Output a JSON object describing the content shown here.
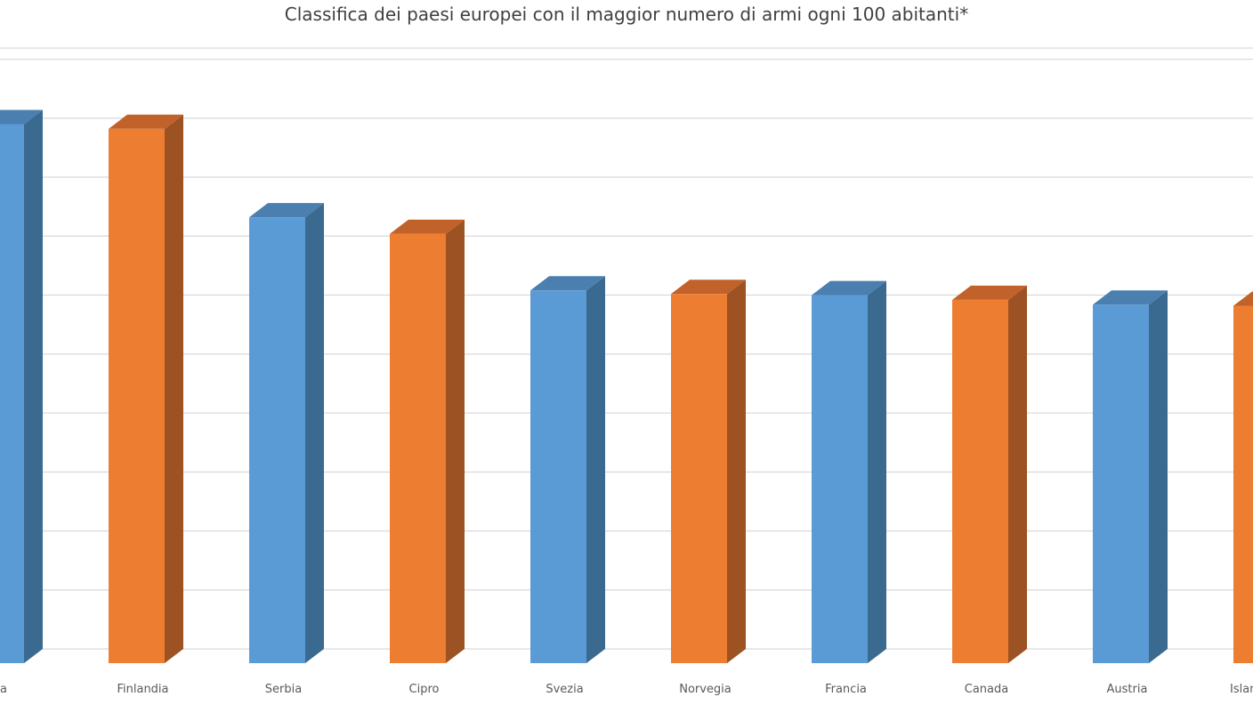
{
  "chart_data": {
    "type": "bar",
    "title": "Classifica dei paesi europei con il maggior numero di armi ogni 100 abitanti*",
    "xlabel": "",
    "ylabel": "",
    "categories": [
      "Svizzera",
      "Finlandia",
      "Serbia",
      "Cipro",
      "Svezia",
      "Norvegia",
      "Francia",
      "Canada",
      "Austria",
      "Islanda"
    ],
    "visible_category_labels": [
      "a",
      "Finlandia",
      "Serbia",
      "Cipro",
      "Svezia",
      "Norvegia",
      "Francia",
      "Canada",
      "Austria",
      "Islan"
    ],
    "values": [
      45.7,
      45.3,
      37.8,
      36.4,
      31.6,
      31.3,
      31.2,
      30.8,
      30.4,
      30.3
    ],
    "ylim": [
      0,
      50
    ],
    "grid": true,
    "bar_style": "3d-column",
    "colors": {
      "blue_front": "#5b9bd5",
      "blue_side": "#3a6a8f",
      "blue_top": "#4a7fb0",
      "orange_front": "#ed7d31",
      "orange_side": "#9c5222",
      "orange_top": "#c0622a",
      "grid": "#d9d9d9",
      "text": "#595959"
    }
  }
}
